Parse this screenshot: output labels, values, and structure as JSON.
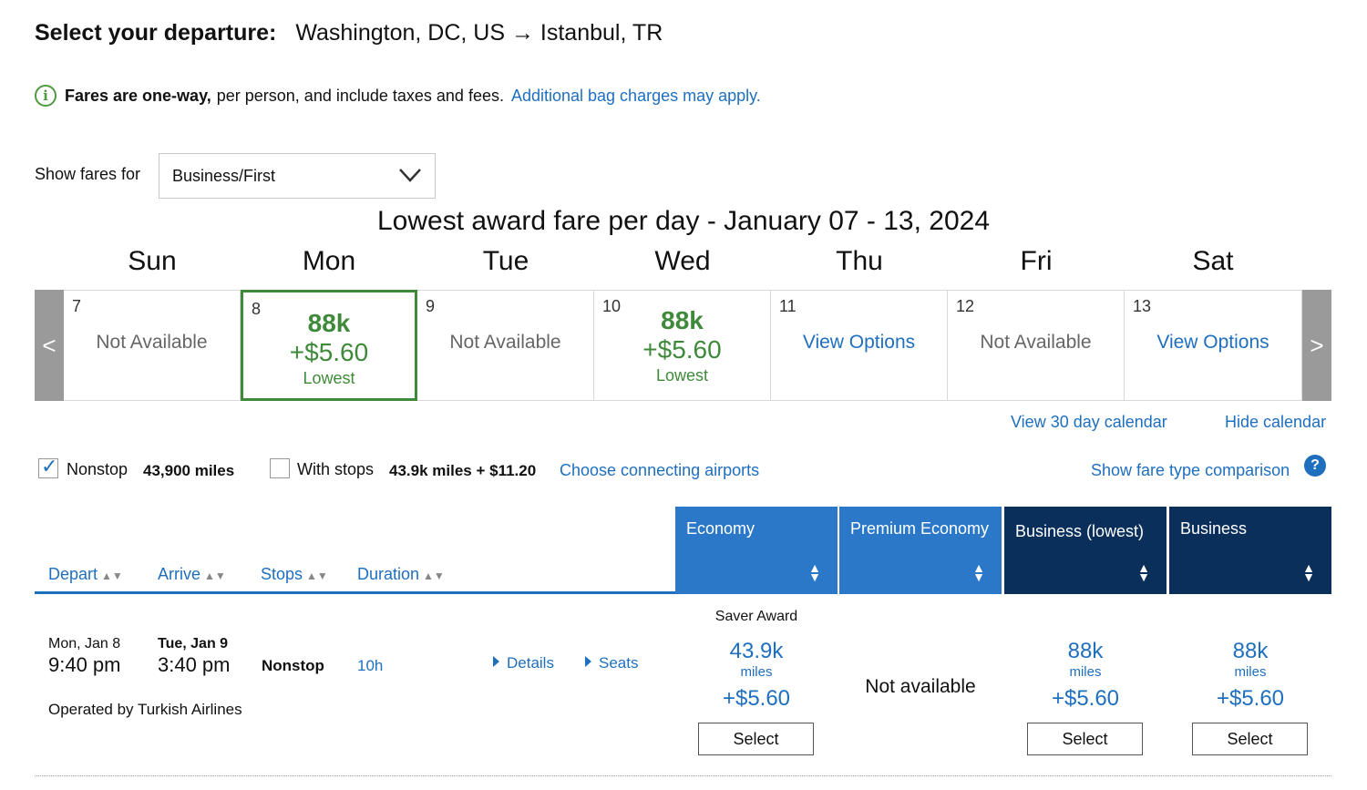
{
  "header": {
    "label": "Select your departure:",
    "route": "Washington, DC, US → Istanbul, TR"
  },
  "notice": {
    "bold": "Fares are one-way,",
    "text": "per person, and include taxes and fees.",
    "link": "Additional bag charges may apply."
  },
  "fare_filter": {
    "label": "Show fares for",
    "selected": "Business/First"
  },
  "calendar": {
    "title": "Lowest award fare per day - January 07 - 13, 2024",
    "prev_arrow": "<",
    "next_arrow": ">",
    "days": [
      {
        "name": "Sun",
        "num": "7",
        "status": "Not Available"
      },
      {
        "name": "Mon",
        "num": "8",
        "miles": "88k",
        "tax": "+$5.60",
        "badge": "Lowest"
      },
      {
        "name": "Tue",
        "num": "9",
        "status": "Not Available"
      },
      {
        "name": "Wed",
        "num": "10",
        "miles": "88k",
        "tax": "+$5.60",
        "badge": "Lowest"
      },
      {
        "name": "Thu",
        "num": "11",
        "link": "View Options"
      },
      {
        "name": "Fri",
        "num": "12",
        "status": "Not Available"
      },
      {
        "name": "Sat",
        "num": "13",
        "link": "View Options"
      }
    ],
    "view_30": "View 30 day calendar",
    "hide": "Hide calendar"
  },
  "filters": {
    "nonstop_label": "Nonstop",
    "nonstop_miles": "43,900 miles",
    "stops_label": "With stops",
    "stops_price": "43.9k miles + $11.20",
    "connecting_link": "Choose connecting airports",
    "comparison_link": "Show fare type comparison",
    "help": "?"
  },
  "columns": {
    "depart": "Depart",
    "arrive": "Arrive",
    "stops": "Stops",
    "duration": "Duration",
    "sort_arrow": "▲▼",
    "economy": "Economy",
    "premium": "Premium Economy",
    "business_lowest": "Business (lowest)",
    "business": "Business"
  },
  "flight": {
    "depart_date": "Mon, Jan 8",
    "depart_time": "9:40 pm",
    "arrive_date": "Tue, Jan 9",
    "arrive_time": "3:40 pm",
    "stops": "Nonstop",
    "duration": "10h",
    "details": "Details",
    "seats": "Seats",
    "operator": "Operated by Turkish Airlines",
    "economy": {
      "label": "Saver Award",
      "miles": "43.9k",
      "unit": "miles",
      "tax": "+$5.60",
      "button": "Select"
    },
    "premium": {
      "status": "Not available"
    },
    "business_lowest": {
      "miles": "88k",
      "unit": "miles",
      "tax": "+$5.60",
      "button": "Select"
    },
    "business": {
      "miles": "88k",
      "unit": "miles",
      "tax": "+$5.60",
      "button": "Select"
    }
  },
  "colors": {
    "link_blue": "#1f6fbf",
    "green": "#3f8a3a",
    "economy_blue": "#2b78c9",
    "business_navy": "#0b2f5b"
  }
}
